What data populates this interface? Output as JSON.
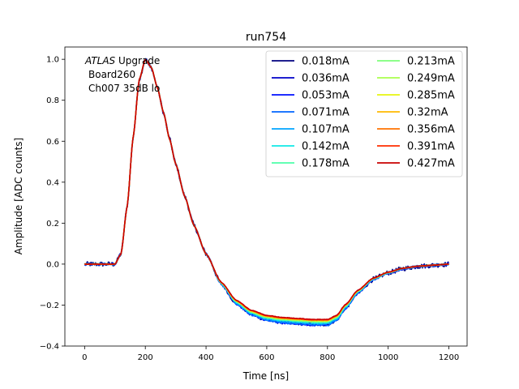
{
  "chart_data": {
    "type": "line",
    "title": "run754",
    "xlabel": "Time [ns]",
    "ylabel": "Amplitude [ADC counts]",
    "xlim": [
      -65,
      1260
    ],
    "ylim": [
      -0.4,
      1.06
    ],
    "x_ticks": [
      0,
      200,
      400,
      600,
      800,
      1000,
      1200
    ],
    "y_ticks": [
      -0.4,
      -0.2,
      0.0,
      0.2,
      0.4,
      0.6,
      0.8,
      1.0
    ],
    "x_tick_labels": [
      "0",
      "200",
      "400",
      "600",
      "800",
      "1000",
      "1200"
    ],
    "y_tick_labels": [
      "−0.4",
      "−0.2",
      "0.0",
      "0.2",
      "0.4",
      "0.6",
      "0.8",
      "1.0"
    ],
    "grid": false,
    "legend_position": "top-right",
    "legend_columns": 2,
    "annotation": {
      "line1_italic": "ATLAS",
      "line1_rest": " Upgrade",
      "line2": "Board260",
      "line3": "Ch007 35dB lo"
    },
    "pulse_shape": {
      "x": [
        0,
        100,
        120,
        140,
        160,
        180,
        200,
        220,
        240,
        260,
        280,
        300,
        330,
        360,
        400,
        450,
        500,
        550,
        600,
        650,
        700,
        750,
        800,
        830,
        860,
        900,
        950,
        1000,
        1050,
        1100,
        1150,
        1200
      ],
      "y": [
        0.0,
        0.0,
        0.05,
        0.28,
        0.62,
        0.9,
        1.0,
        0.96,
        0.86,
        0.74,
        0.61,
        0.49,
        0.33,
        0.19,
        0.05,
        -0.09,
        -0.18,
        -0.23,
        -0.255,
        -0.265,
        -0.27,
        -0.275,
        -0.275,
        -0.255,
        -0.2,
        -0.13,
        -0.07,
        -0.04,
        -0.02,
        -0.01,
        -0.005,
        0.0
      ]
    },
    "series": [
      {
        "name": "0.018mA",
        "color": "#00007f",
        "undershoot_scale": 1.06,
        "noise": 0.012
      },
      {
        "name": "0.036mA",
        "color": "#0000c8",
        "undershoot_scale": 1.07,
        "noise": 0.007
      },
      {
        "name": "0.053mA",
        "color": "#0010ff",
        "undershoot_scale": 1.08,
        "noise": 0.005
      },
      {
        "name": "0.071mA",
        "color": "#0064ff",
        "undershoot_scale": 1.08,
        "noise": 0.004
      },
      {
        "name": "0.107mA",
        "color": "#00a4ff",
        "undershoot_scale": 1.06,
        "noise": 0.003
      },
      {
        "name": "0.142mA",
        "color": "#10e8e6",
        "undershoot_scale": 1.04,
        "noise": 0.003
      },
      {
        "name": "0.178mA",
        "color": "#4dffaa",
        "undershoot_scale": 1.03,
        "noise": 0.002
      },
      {
        "name": "0.213mA",
        "color": "#7dff7a",
        "undershoot_scale": 1.02,
        "noise": 0.002
      },
      {
        "name": "0.249mA",
        "color": "#aaff4d",
        "undershoot_scale": 1.01,
        "noise": 0.002
      },
      {
        "name": "0.285mA",
        "color": "#e6f50f",
        "undershoot_scale": 1.0,
        "noise": 0.002
      },
      {
        "name": "0.32mA",
        "color": "#ffb900",
        "undershoot_scale": 1.0,
        "noise": 0.002
      },
      {
        "name": "0.356mA",
        "color": "#ff7300",
        "undershoot_scale": 0.99,
        "noise": 0.001
      },
      {
        "name": "0.391mA",
        "color": "#ff2e00",
        "undershoot_scale": 0.99,
        "noise": 0.001
      },
      {
        "name": "0.427mA",
        "color": "#c80000",
        "undershoot_scale": 0.98,
        "noise": 0.001
      }
    ]
  }
}
